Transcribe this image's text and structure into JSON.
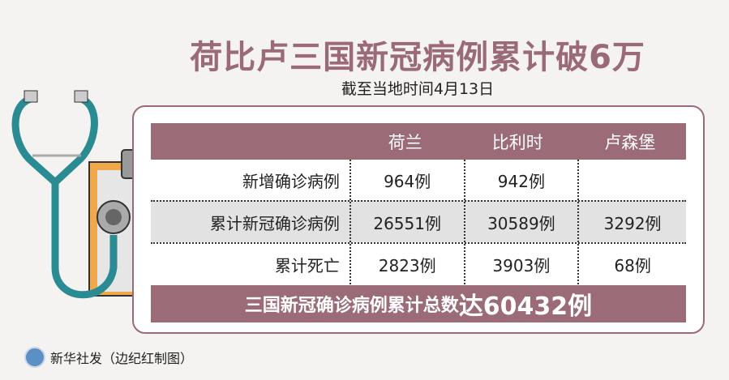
{
  "title": "荷比卢三国新冠病例累计破6万",
  "subtitle": "截至当地时间4月13日",
  "table": {
    "headers": [
      "",
      "荷兰",
      "比利时",
      "卢森堡"
    ],
    "rows": [
      {
        "label": "新增确诊病例",
        "values": [
          "964例",
          "942例",
          ""
        ]
      },
      {
        "label": "累计新冠确诊病例",
        "values": [
          "26551例",
          "30589例",
          "3292例"
        ]
      },
      {
        "label": "累计死亡",
        "values": [
          "2823例",
          "3903例",
          "68例"
        ]
      }
    ]
  },
  "footer": {
    "prefix": "三国新冠确诊病例累计总数",
    "highlight": "达60432例"
  },
  "credit": "新华社发（边纪红制图）",
  "colors": {
    "accent": "#9b6b77",
    "stethoscope": "#2a8c92",
    "clipboard": "#f0a84a"
  }
}
